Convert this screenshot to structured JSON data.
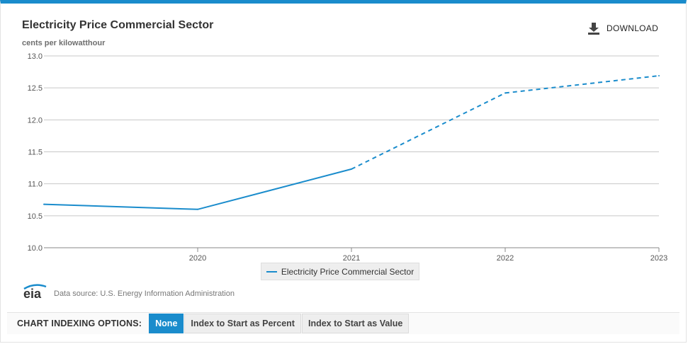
{
  "header": {
    "title": "Electricity Price Commercial Sector",
    "units": "cents per kilowatthour",
    "download_label": "DOWNLOAD"
  },
  "legend": {
    "label": "Electricity Price Commercial Sector"
  },
  "footer": {
    "logo_text": "eia",
    "source": "Data source: U.S. Energy Information Administration"
  },
  "indexing": {
    "label": "CHART INDEXING OPTIONS:",
    "options": [
      "None",
      "Index to Start as Percent",
      "Index to Start as Value"
    ],
    "selected": "None"
  },
  "colors": {
    "accent": "#1a8ccc",
    "grid": "#c8c8c8"
  },
  "chart_data": {
    "type": "line",
    "title": "Electricity Price Commercial Sector",
    "ylabel": "cents per kilowatthour",
    "xlabel": "",
    "x": [
      2019.0,
      2020.0,
      2021.0,
      2022.0,
      2023.0
    ],
    "xlim": [
      2019.0,
      2023.0
    ],
    "x_ticks": [
      "2020",
      "2021",
      "2022",
      "2023"
    ],
    "ylim": [
      10.0,
      13.0
    ],
    "y_ticks": [
      "10.0",
      "10.5",
      "11.0",
      "11.5",
      "12.0",
      "12.5",
      "13.0"
    ],
    "series": [
      {
        "name": "Electricity Price Commercial Sector",
        "values": [
          10.68,
          10.6,
          11.23,
          12.42,
          12.69
        ],
        "forecast_from_index": 2
      }
    ],
    "grid": true,
    "legend_position": "bottom-center"
  }
}
